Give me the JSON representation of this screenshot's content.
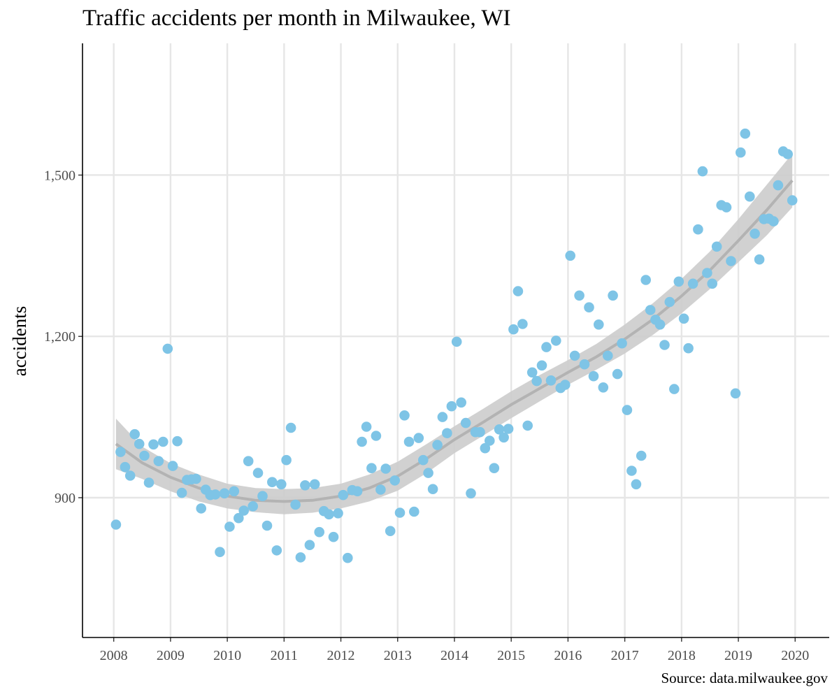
{
  "chart_data": {
    "type": "scatter",
    "title": "Traffic accidents per month in Milwaukee, WI",
    "ylabel": "accidents",
    "xlabel": "",
    "caption": "Source: data.milwaukee.gov",
    "x_ticks": [
      "2008",
      "2009",
      "2010",
      "2011",
      "2012",
      "2013",
      "2014",
      "2015",
      "2016",
      "2017",
      "2018",
      "2019",
      "2020"
    ],
    "y_ticks": [
      "900",
      "1,200",
      "1,500"
    ],
    "y_tick_values": [
      900,
      1200,
      1500
    ],
    "xlim": [
      2007.45,
      2020.6
    ],
    "ylim": [
      640,
      1745
    ],
    "grid": true,
    "point_color": "#7EC4E6",
    "smooth_color": "#B3B3B3",
    "band_color": "#CCCCCC",
    "series": [
      {
        "x": [
          2008.04,
          2008.12,
          2008.2,
          2008.29,
          2008.37,
          2008.45,
          2008.54,
          2008.62,
          2008.7,
          2008.79,
          2008.87,
          2008.95,
          2009.04,
          2009.12,
          2009.2,
          2009.29,
          2009.37,
          2009.45,
          2009.54,
          2009.62,
          2009.7,
          2009.79,
          2009.87,
          2009.95,
          2010.04,
          2010.12,
          2010.2,
          2010.29,
          2010.37,
          2010.45,
          2010.54,
          2010.62,
          2010.7,
          2010.79,
          2010.87,
          2010.95,
          2011.04,
          2011.12,
          2011.2,
          2011.29,
          2011.37,
          2011.45,
          2011.54,
          2011.62,
          2011.7,
          2011.79,
          2011.87,
          2011.95,
          2012.04,
          2012.12,
          2012.2,
          2012.29,
          2012.37,
          2012.45,
          2012.54,
          2012.62,
          2012.7,
          2012.79,
          2012.87,
          2012.95,
          2013.04,
          2013.12,
          2013.2,
          2013.29,
          2013.37,
          2013.45,
          2013.54,
          2013.62,
          2013.7,
          2013.79,
          2013.87,
          2013.95,
          2014.04,
          2014.12,
          2014.2,
          2014.29,
          2014.37,
          2014.45,
          2014.54,
          2014.62,
          2014.7,
          2014.79,
          2014.87,
          2014.95,
          2015.04,
          2015.12,
          2015.2,
          2015.29,
          2015.37,
          2015.45,
          2015.54,
          2015.62,
          2015.7,
          2015.79,
          2015.87,
          2015.95,
          2016.04,
          2016.12,
          2016.2,
          2016.29,
          2016.37,
          2016.45,
          2016.54,
          2016.62,
          2016.7,
          2016.79,
          2016.87,
          2016.95,
          2017.04,
          2017.12,
          2017.2,
          2017.29,
          2017.37,
          2017.45,
          2017.54,
          2017.62,
          2017.7,
          2017.79,
          2017.87,
          2017.95,
          2018.04,
          2018.12,
          2018.2,
          2018.29,
          2018.37,
          2018.45,
          2018.54,
          2018.62,
          2018.7,
          2018.79,
          2018.87,
          2018.95,
          2019.04,
          2019.12,
          2019.2,
          2019.29,
          2019.37,
          2019.45,
          2019.54,
          2019.62,
          2019.7,
          2019.79,
          2019.87,
          2019.95
        ],
        "y": [
          850,
          985,
          957,
          941,
          1018,
          1000,
          978,
          928,
          999,
          968,
          1004,
          1177,
          959,
          1005,
          909,
          933,
          934,
          935,
          880,
          915,
          905,
          906,
          799,
          908,
          846,
          912,
          862,
          876,
          968,
          884,
          946,
          903,
          848,
          929,
          802,
          925,
          970,
          1030,
          887,
          789,
          923,
          812,
          925,
          836,
          875,
          869,
          827,
          871,
          905,
          788,
          914,
          912,
          1004,
          1032,
          955,
          1015,
          915,
          954,
          838,
          932,
          872,
          1053,
          1004,
          874,
          1011,
          970,
          946,
          916,
          998,
          1050,
          1020,
          1070,
          1190,
          1077,
          1039,
          908,
          1022,
          1022,
          992,
          1006,
          955,
          1027,
          1012,
          1028,
          1213,
          1284,
          1223,
          1034,
          1133,
          1117,
          1146,
          1180,
          1118,
          1192,
          1104,
          1110,
          1350,
          1164,
          1276,
          1148,
          1254,
          1126,
          1222,
          1105,
          1164,
          1276,
          1130,
          1187,
          1063,
          950,
          925,
          978,
          1305,
          1249,
          1231,
          1222,
          1184,
          1264,
          1102,
          1302,
          1233,
          1178,
          1298,
          1399,
          1507,
          1318,
          1298,
          1367,
          1444,
          1440,
          1340,
          1094,
          1542,
          1577,
          1460,
          1391,
          1343,
          1418,
          1419,
          1414,
          1481,
          1544,
          1539,
          1453
        ]
      }
    ],
    "smooth": {
      "x": [
        2008.04,
        2008.5,
        2009,
        2009.5,
        2010,
        2010.5,
        2011,
        2011.5,
        2012,
        2012.5,
        2013,
        2013.5,
        2014,
        2014.5,
        2015,
        2015.5,
        2016,
        2016.5,
        2017,
        2017.5,
        2018,
        2018.5,
        2019,
        2019.5,
        2019.95
      ],
      "y": [
        1000,
        965,
        938,
        918,
        903,
        895,
        893,
        895,
        903,
        918,
        940,
        972,
        1008,
        1040,
        1073,
        1103,
        1133,
        1162,
        1195,
        1232,
        1275,
        1323,
        1378,
        1435,
        1490
      ],
      "lower": [
        953,
        935,
        912,
        893,
        880,
        873,
        869,
        872,
        880,
        893,
        913,
        945,
        983,
        1015,
        1048,
        1079,
        1110,
        1138,
        1168,
        1203,
        1243,
        1288,
        1338,
        1388,
        1440
      ],
      "upper": [
        1047,
        995,
        964,
        943,
        926,
        918,
        916,
        918,
        926,
        943,
        967,
        999,
        1033,
        1065,
        1098,
        1128,
        1156,
        1186,
        1222,
        1262,
        1307,
        1358,
        1418,
        1482,
        1540
      ]
    }
  }
}
